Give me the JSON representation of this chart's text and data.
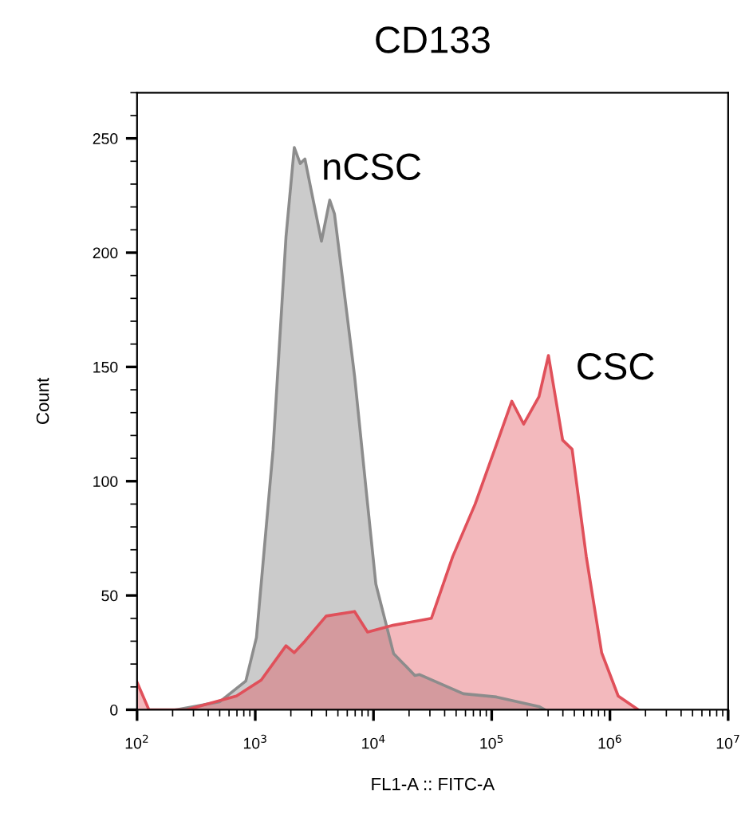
{
  "chart_data": {
    "type": "area",
    "title": "CD133",
    "xlabel": "FL1-A :: FITC-A",
    "ylabel": "Count",
    "log": "x",
    "xlim": [
      100,
      10000000
    ],
    "ylim": [
      0,
      270
    ],
    "xticks": [
      {
        "value": 100,
        "label": "10$^{2}$"
      },
      {
        "value": 1000,
        "label": "10$^{3}$"
      },
      {
        "value": 10000,
        "label": "10$^{4}$"
      },
      {
        "value": 100000,
        "label": "10$^{5}$"
      },
      {
        "value": 1000000,
        "label": "10$^{6}$"
      },
      {
        "value": 10000000,
        "label": "10$^{7}$"
      }
    ],
    "yticks": [
      0,
      50,
      100,
      150,
      200,
      250
    ],
    "grid": false,
    "legend": false,
    "series": [
      {
        "name": "nCSC",
        "color": "#8c8c8c",
        "x": [
          214,
          501,
          832,
          1023,
          1413,
          1820,
          2138,
          2399,
          2630,
          3631,
          4266,
          4677,
          5495,
          6918,
          8913,
          10470,
          14790,
          22390,
          24550,
          57540,
          109600,
          251200,
          281800
        ],
        "values": [
          0,
          3.5,
          12.6,
          31.6,
          113.6,
          207,
          246,
          239,
          241,
          205,
          223,
          217,
          188,
          146,
          90,
          55,
          24.6,
          15,
          15.4,
          7,
          5.6,
          1.4,
          0
        ]
      },
      {
        "name": "CSC",
        "color": "#e0505a",
        "x": [
          100,
          126,
          263,
          692,
          1122,
          1820,
          2138,
          2630,
          3981,
          6918,
          8913,
          14790,
          30900,
          46770,
          72440,
          109600,
          147900,
          186200,
          251200,
          302000,
          398100,
          478600,
          631000,
          851100,
          1175000,
          1738000
        ],
        "values": [
          12,
          0,
          0,
          6,
          13,
          28,
          25,
          30,
          41,
          43,
          34,
          37,
          40,
          67,
          90,
          116,
          135,
          125,
          137,
          155,
          118,
          114,
          67,
          25,
          6,
          0
        ]
      }
    ]
  }
}
